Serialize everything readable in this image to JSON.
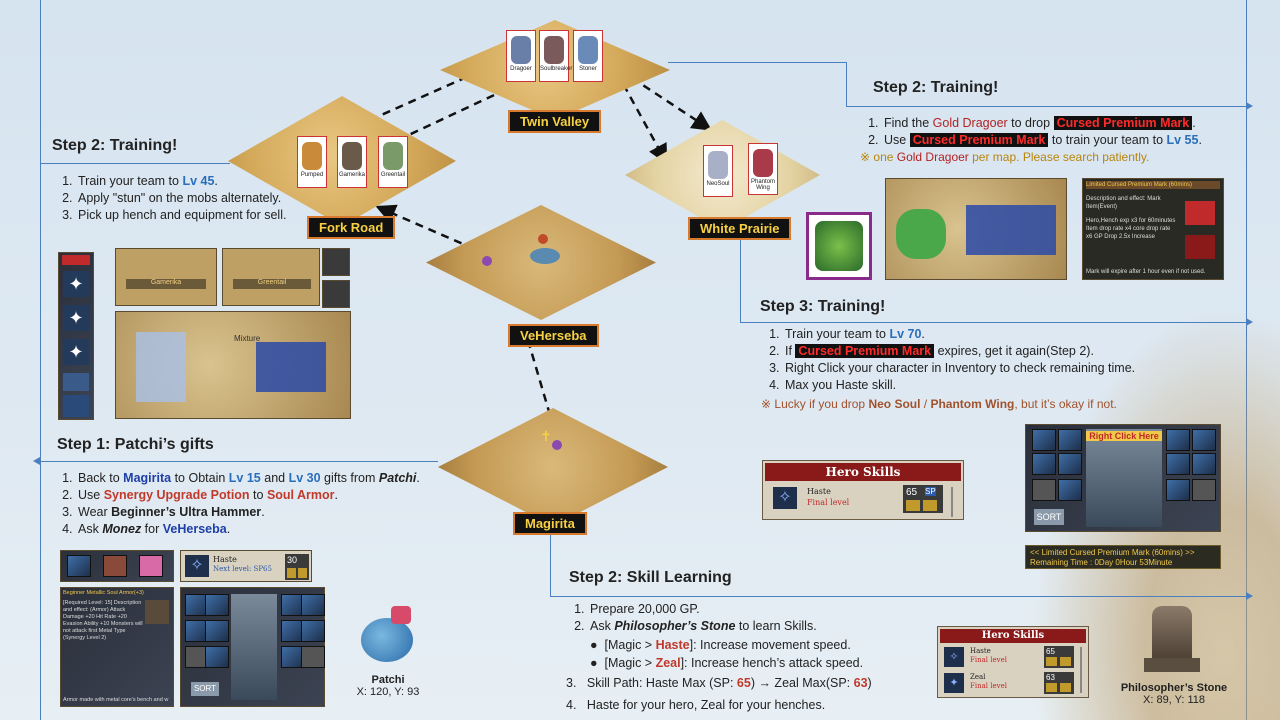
{
  "maps": {
    "twin_valley": {
      "label": "Twin Valley",
      "mobs": [
        "Dragoer",
        "Soulbreaker",
        "Stoner"
      ]
    },
    "fork_road": {
      "label": "Fork Road",
      "mobs": [
        "Pumped",
        "Gamerika",
        "Greentail"
      ]
    },
    "white_prairie": {
      "label": "White Prairie",
      "mobs": [
        "NeoSoul",
        "Phantom Wing"
      ]
    },
    "veherseba": {
      "label": "VeHerseba"
    },
    "magirita": {
      "label": "Magirita"
    }
  },
  "step_training_45": {
    "title": "Step 2: Training!",
    "items": [
      {
        "pre": "Train your team to ",
        "lv": "Lv 45",
        "post": "."
      },
      {
        "text": "Apply \"stun\" on the mobs alternately."
      },
      {
        "text": "Pick up hench and equipment for sell."
      }
    ]
  },
  "step_training_55": {
    "title": "Step 2: Training!",
    "item1_pre": "Find the ",
    "item1_name": "Gold Dragoer",
    "item1_mid": " to drop ",
    "item1_mark": "Cursed Premium Mark",
    "item1_post": ".",
    "item2_pre": "Use ",
    "item2_mark": "Cursed Premium Mark",
    "item2_mid": " to train your team to ",
    "item2_lv": "Lv 55",
    "item2_post": ".",
    "note_pre": "※ one ",
    "note_name": "Gold Dragoer",
    "note_post": " per map. Please search patiently."
  },
  "step_training_70": {
    "title": "Step 3: Training!",
    "item1_pre": "Train your team to ",
    "item1_lv": "Lv 70",
    "item1_post": ".",
    "item2_pre": "If ",
    "item2_mark": "Cursed Premium Mark",
    "item2_post": " expires, get it again(Step 2).",
    "item3": "Right Click your character in Inventory to check remaining time.",
    "item4": "Max you Haste skill.",
    "note_pre": "※ Lucky if you drop ",
    "note_a": "Neo Soul",
    "note_sep": " / ",
    "note_b": "Phantom Wing",
    "note_post": ", but it’s okay if not."
  },
  "step_gifts": {
    "title": "Step 1: Patchi’s gifts",
    "item1_pre": "Back to ",
    "item1_town": "Magirita",
    "item1_mid": " to Obtain ",
    "item1_lv1": "Lv 15",
    "item1_and": " and ",
    "item1_lv2": "Lv 30",
    "item1_mid2": " gifts from ",
    "item1_npc": "Patchi",
    "item1_post": ".",
    "item2_pre": "Use ",
    "item2_item": "Synergy Upgrade Potion",
    "item2_mid": " to ",
    "item2_target": "Soul Armor",
    "item2_post": ".",
    "item3_pre": "Wear ",
    "item3_item": "Beginner’s Ultra Hammer",
    "item3_post": ".",
    "item4_pre": "Ask ",
    "item4_npc": "Monez",
    "item4_mid": " for ",
    "item4_town": "VeHerseba",
    "item4_post": "."
  },
  "step_skill": {
    "title": "Step 2: Skill Learning",
    "item1": "Prepare 20,000 GP.",
    "item2_pre": "Ask ",
    "item2_npc": "Philosopher’s Stone",
    "item2_post": " to learn Skills.",
    "bullet1_pre": "[Magic > ",
    "bullet1_skill": "Haste",
    "bullet1_post": "]: Increase movement speed.",
    "bullet2_pre": "[Magic > ",
    "bullet2_skill": "Zeal",
    "bullet2_post": "]: Increase hench’s attack speed.",
    "item3_num": "3.",
    "item3_pre": "Skill Path: Haste Max (SP: ",
    "item3_sp1": "65",
    "item3_mid": ") → Zeal Max(SP: ",
    "item3_sp2": "63",
    "item3_post": ")",
    "item4_num": "4.",
    "item4": "Haste for your hero, Zeal for your henches."
  },
  "npcs": {
    "patchi": {
      "name": "Patchi",
      "coords": "X: 120, Y: 93"
    },
    "philosopher": {
      "name": "Philosopher’s Stone",
      "coords": "X: 89, Y: 118"
    }
  },
  "ui": {
    "hero_skills_title": "Hero Skills",
    "haste": "Haste",
    "haste_level": "Final level",
    "haste_sp": "65",
    "sp_label": "SP",
    "zeal": "Zeal",
    "zeal_level": "Final level",
    "zeal_sp": "63",
    "haste_small": "Haste",
    "haste_small_next": "Next level: SP65",
    "haste_small_sp": "30",
    "right_click": "Right Click Here",
    "sort": "SORT",
    "timer_line1": "<< Limited Cursed Premium Mark (60mins) >>",
    "timer_line2": "Remaining Time : 0Day 0Hour 53Minute",
    "mark_title": "Limited Cursed Premium Mark (60mins)",
    "mark_desc": "Description and effect: Mark Item(Event)",
    "mark_stats": "Hero,Hench exp x3 for 60minutes Item drop rate x4 core drop rate x6 GP Drop 2.5x Increase",
    "mark_foot": "Mark will expire after 1 hour even if not used.",
    "armor_title": "Beginner Metallic Soul Armor(+3)",
    "armor_lines": "[Required Level: 15] Description and effect: (Armor) Attack Damage +20 Hit Rate +20 Evasion Ability +10 Monsters will not attack first Metal Type (Synergy Level 2)",
    "armor_foot": "Armor made with metal core's bench and w",
    "gamerika_tag": "Gamerika",
    "greentail_tag": "Greentail",
    "mixture_tag": "Mixture"
  },
  "colors": {
    "accent": "#4a7fc0",
    "label_bg": "#111111",
    "label_text": "#f7d043",
    "label_border": "#d87a2e",
    "level_blue": "#2a6ebb",
    "mark_red": "#ff2a2a"
  }
}
